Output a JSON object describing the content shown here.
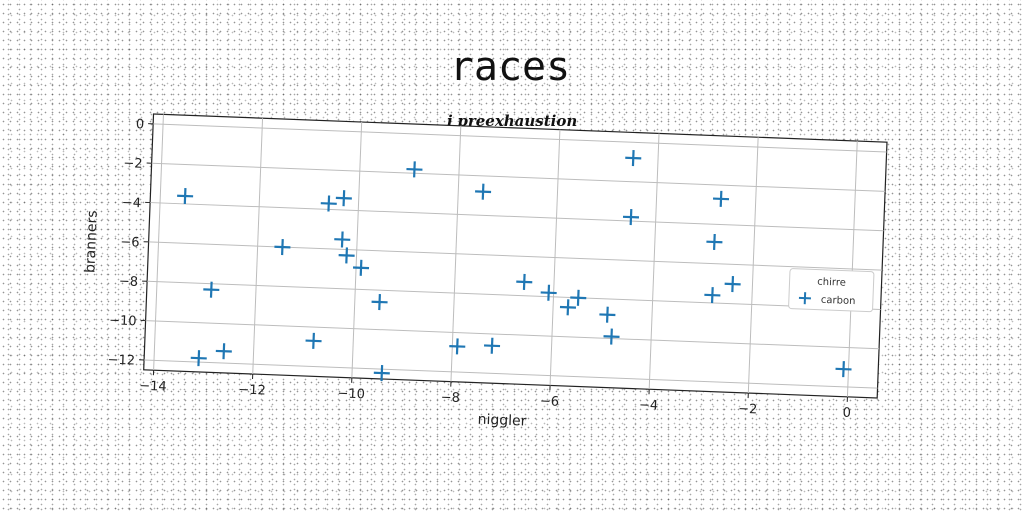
{
  "title": "races",
  "chart_data": {
    "type": "scatter",
    "title": "j preexhaustion",
    "xlabel": "niggler",
    "ylabel": "branners",
    "xlim": [
      -14.2,
      0.6
    ],
    "ylim": [
      -12.5,
      0.5
    ],
    "xticks": [
      -14,
      -12,
      -10,
      -8,
      -6,
      -4,
      -2,
      0
    ],
    "yticks": [
      0,
      -2,
      -4,
      -6,
      -8,
      -10,
      -12
    ],
    "grid": true,
    "legend": {
      "title": "chirre",
      "placement": "right"
    },
    "marker": "+",
    "color": "#1f77b4",
    "series": [
      {
        "name": "carbon",
        "points": [
          {
            "x": -13.5,
            "y": -3.6
          },
          {
            "x": -12.9,
            "y": -8.3
          },
          {
            "x": -13.1,
            "y": -11.8
          },
          {
            "x": -12.6,
            "y": -11.4
          },
          {
            "x": -11.5,
            "y": -6.0
          },
          {
            "x": -10.6,
            "y": -3.7
          },
          {
            "x": -10.3,
            "y": -3.4
          },
          {
            "x": -10.3,
            "y": -5.5
          },
          {
            "x": -10.2,
            "y": -6.3
          },
          {
            "x": -9.9,
            "y": -6.9
          },
          {
            "x": -9.5,
            "y": -8.6
          },
          {
            "x": -9.4,
            "y": -12.2
          },
          {
            "x": -10.8,
            "y": -10.7
          },
          {
            "x": -8.9,
            "y": -1.8
          },
          {
            "x": -7.5,
            "y": -2.8
          },
          {
            "x": -7.9,
            "y": -10.7
          },
          {
            "x": -7.2,
            "y": -10.6
          },
          {
            "x": -6.6,
            "y": -7.3
          },
          {
            "x": -6.1,
            "y": -7.8
          },
          {
            "x": -5.7,
            "y": -8.5
          },
          {
            "x": -5.5,
            "y": -8.0
          },
          {
            "x": -4.9,
            "y": -8.8
          },
          {
            "x": -4.8,
            "y": -9.9
          },
          {
            "x": -4.5,
            "y": -0.8
          },
          {
            "x": -4.5,
            "y": -3.8
          },
          {
            "x": -2.7,
            "y": -2.7
          },
          {
            "x": -2.8,
            "y": -4.9
          },
          {
            "x": -2.8,
            "y": -7.6
          },
          {
            "x": -2.4,
            "y": -7.0
          },
          {
            "x": -0.1,
            "y": -11.1
          }
        ]
      }
    ]
  }
}
